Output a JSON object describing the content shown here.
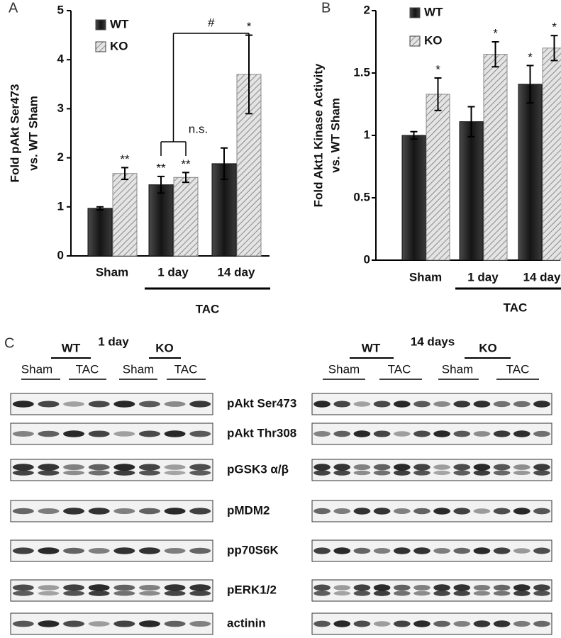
{
  "chart_data": [
    {
      "type": "bar",
      "panel": "A",
      "ylabel": [
        "Fold pAkt Ser473",
        "vs. WT Sham"
      ],
      "categories": [
        "Sham",
        "1 day",
        "14 day"
      ],
      "group_label": "TAC",
      "ylim": [
        0,
        5
      ],
      "yticks": [
        0,
        1,
        2,
        3,
        4,
        5
      ],
      "legend": "upper left",
      "series": [
        {
          "name": "WT",
          "color": "#222222",
          "values": [
            0.97,
            1.45,
            1.88
          ],
          "errors": [
            0.03,
            0.17,
            0.32
          ],
          "annotations": [
            null,
            "**",
            null
          ]
        },
        {
          "name": "KO",
          "color": "#cfcfcf",
          "pattern": "hatch",
          "values": [
            1.68,
            1.6,
            3.7
          ],
          "errors": [
            0.12,
            0.1,
            0.8
          ],
          "annotations": [
            "**",
            "**",
            "*"
          ]
        }
      ],
      "comparison_labels": [
        "n.s.",
        "#"
      ]
    },
    {
      "type": "bar",
      "panel": "B",
      "ylabel": [
        "Fold Akt1 Kinase Activity",
        "vs. WT Sham"
      ],
      "categories": [
        "Sham",
        "1 day",
        "14 day"
      ],
      "group_label": "TAC",
      "ylim": [
        0,
        2
      ],
      "yticks": [
        0,
        0.5,
        1,
        1.5,
        2
      ],
      "legend": "upper left",
      "series": [
        {
          "name": "WT",
          "color": "#222222",
          "values": [
            1.0,
            1.11,
            1.41
          ],
          "errors": [
            0.03,
            0.12,
            0.15
          ],
          "annotations": [
            null,
            null,
            "*"
          ]
        },
        {
          "name": "KO",
          "color": "#cfcfcf",
          "pattern": "hatch",
          "values": [
            1.33,
            1.65,
            1.7
          ],
          "errors": [
            0.13,
            0.1,
            0.1
          ],
          "annotations": [
            "*",
            "*",
            "*"
          ]
        }
      ]
    }
  ],
  "blots": {
    "panel": "C",
    "left": {
      "groups": [
        "WT",
        "KO"
      ],
      "time": "1 day",
      "conditions": [
        "Sham",
        "TAC",
        "Sham",
        "TAC"
      ]
    },
    "right": {
      "groups": [
        "WT",
        "KO"
      ],
      "time": "14 days",
      "conditions": [
        "Sham",
        "TAC",
        "Sham",
        "TAC"
      ]
    },
    "rows": [
      "pAkt Ser473",
      "pAkt Thr308",
      "pGSK3 α/β",
      "pMDM2",
      "pp70S6K",
      "pERK1/2",
      "actinin"
    ]
  }
}
